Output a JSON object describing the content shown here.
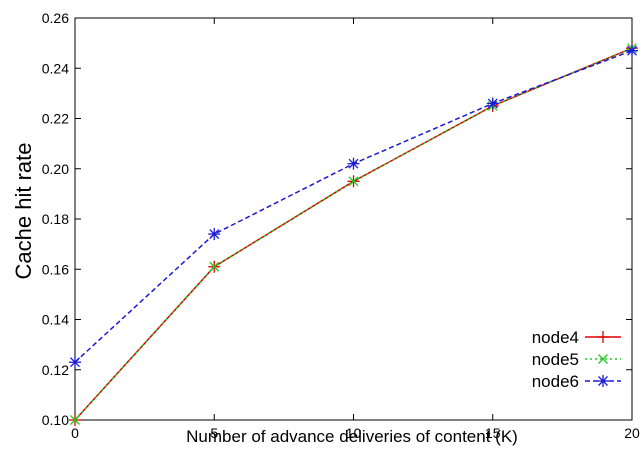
{
  "chart_data": {
    "type": "line",
    "title": "",
    "xlabel": "Number of advance deliveries of content (K)",
    "ylabel": "Cache hit rate",
    "xlim": [
      0,
      20
    ],
    "ylim": [
      0.1,
      0.26
    ],
    "x_ticks": [
      0,
      5,
      10,
      15,
      20
    ],
    "x_tick_labels": [
      "0",
      "5",
      "10",
      "15",
      "20"
    ],
    "y_ticks": [
      0.1,
      0.12,
      0.14,
      0.16,
      0.18,
      0.2,
      0.22,
      0.24,
      0.26
    ],
    "y_tick_labels": [
      "0.10",
      "0.12",
      "0.14",
      "0.16",
      "0.18",
      "0.20",
      "0.22",
      "0.24",
      "0.26"
    ],
    "grid": false,
    "legend_position": "bottom-right",
    "x": [
      0,
      5,
      10,
      15,
      20
    ],
    "series": [
      {
        "name": "node4",
        "values": [
          0.1,
          0.161,
          0.195,
          0.225,
          0.248
        ],
        "color": "#e00000",
        "dash": "solid",
        "marker": "plus"
      },
      {
        "name": "node5",
        "values": [
          0.1,
          0.161,
          0.195,
          0.225,
          0.248
        ],
        "color": "#22cc22",
        "dash": "dotted",
        "marker": "x"
      },
      {
        "name": "node6",
        "values": [
          0.123,
          0.174,
          0.202,
          0.226,
          0.247
        ],
        "color": "#1a1ad6",
        "dash": "dashed",
        "marker": "star"
      }
    ]
  }
}
